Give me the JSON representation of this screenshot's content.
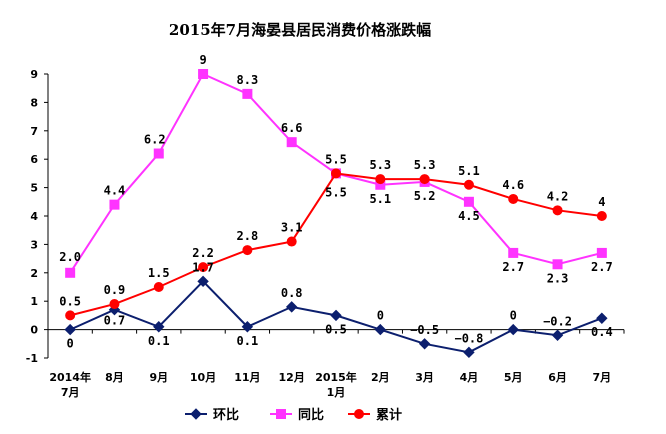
{
  "chart_data": {
    "type": "line",
    "title": "2015年7月海晏县居民消费价格涨跌幅",
    "categories": [
      [
        "2014年",
        "7月"
      ],
      [
        "8月"
      ],
      [
        "9月"
      ],
      [
        "10月"
      ],
      [
        "11月"
      ],
      [
        "12月"
      ],
      [
        "2015年",
        "1月"
      ],
      [
        "2月"
      ],
      [
        "3月"
      ],
      [
        "4月"
      ],
      [
        "5月"
      ],
      [
        "6月"
      ],
      [
        "7月"
      ]
    ],
    "ylim": [
      -1,
      9
    ],
    "yticks": [
      "-1",
      "0",
      "1",
      "2",
      "3",
      "4",
      "5",
      "6",
      "7",
      "8",
      "9"
    ],
    "grid": false,
    "legend": "bottom",
    "series": [
      {
        "name": "环比",
        "color": "#0c1f6e",
        "marker": "diamond",
        "values": [
          0,
          0.7,
          0.1,
          1.7,
          0.1,
          0.8,
          0.5,
          0,
          -0.5,
          -0.8,
          0,
          -0.2,
          0.4
        ],
        "labels": [
          "0",
          "0.7",
          "0.1",
          "1.7",
          "0.1",
          "0.8",
          "0.5",
          "0",
          "−0.5",
          "−0.8",
          "0",
          "−0.2",
          "0.4"
        ]
      },
      {
        "name": "同比",
        "color": "#ff33ff",
        "marker": "square",
        "values": [
          2.0,
          4.4,
          6.2,
          9,
          8.3,
          6.6,
          5.5,
          5.1,
          5.2,
          4.5,
          2.7,
          2.3,
          2.7
        ],
        "labels": [
          "2.0",
          "4.4",
          "6.2",
          "9",
          "8.3",
          "6.6",
          "5.5",
          "5.1",
          "5.2",
          "4.5",
          "2.7",
          "2.3",
          "2.7"
        ]
      },
      {
        "name": "累计",
        "color": "#ff0000",
        "marker": "circle",
        "values": [
          0.5,
          0.9,
          1.5,
          2.2,
          2.8,
          3.1,
          5.5,
          5.3,
          5.3,
          5.1,
          4.6,
          4.2,
          4
        ],
        "labels": [
          "0.5",
          "0.9",
          "1.5",
          "2.2",
          "2.8",
          "3.1",
          "5.5",
          "5.3",
          "5.3",
          "5.1",
          "4.6",
          "4.2",
          "4"
        ]
      }
    ]
  }
}
